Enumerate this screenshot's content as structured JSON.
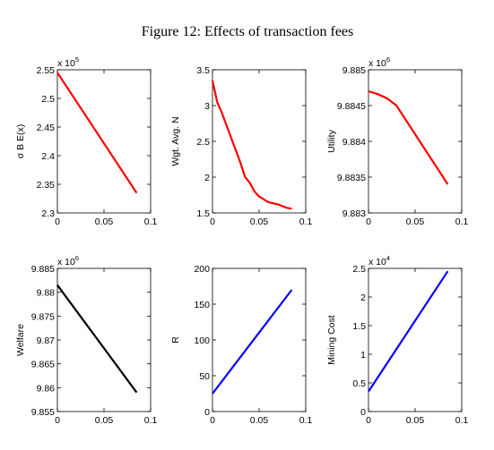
{
  "title": "Figure 12: Effects of transaction fees",
  "chart_data": [
    {
      "type": "line",
      "ylabel": "σ B E(x)",
      "xlim": [
        0,
        0.1
      ],
      "xticks": [
        0,
        0.05,
        0.1
      ],
      "ylim": [
        2.3,
        2.55
      ],
      "yticks": [
        2.3,
        2.35,
        2.4,
        2.45,
        2.5,
        2.55
      ],
      "y_multiplier": {
        "base": "x 10",
        "exponent": "5"
      },
      "series": [
        {
          "color": "#ff0000",
          "x": [
            0,
            0.085
          ],
          "values": [
            2.545,
            2.335
          ]
        }
      ]
    },
    {
      "type": "line",
      "ylabel": "Wgt. Avg. N",
      "xlim": [
        0,
        0.1
      ],
      "xticks": [
        0,
        0.05,
        0.1
      ],
      "ylim": [
        1.5,
        3.5
      ],
      "yticks": [
        1.5,
        2,
        2.5,
        3,
        3.5
      ],
      "series": [
        {
          "color": "#ff0000",
          "x": [
            0,
            0.005,
            0.01,
            0.02,
            0.03,
            0.035,
            0.04,
            0.045,
            0.05,
            0.06,
            0.07,
            0.08,
            0.085
          ],
          "values": [
            3.35,
            3.05,
            2.9,
            2.55,
            2.2,
            2.0,
            1.92,
            1.8,
            1.73,
            1.65,
            1.62,
            1.57,
            1.56
          ]
        }
      ]
    },
    {
      "type": "line",
      "ylabel": "Utility",
      "xlim": [
        0,
        0.1
      ],
      "xticks": [
        0,
        0.05,
        0.1
      ],
      "ylim": [
        9.883,
        9.885
      ],
      "yticks": [
        9.883,
        9.8835,
        9.884,
        9.8845,
        9.885
      ],
      "y_multiplier": {
        "base": "x 10",
        "exponent": "6"
      },
      "series": [
        {
          "color": "#ff0000",
          "x": [
            0,
            0.01,
            0.02,
            0.03,
            0.04,
            0.05,
            0.06,
            0.07,
            0.085
          ],
          "values": [
            9.8847,
            9.88466,
            9.8846,
            9.8845,
            9.8843,
            9.8841,
            9.8839,
            9.8837,
            9.8834
          ]
        }
      ]
    },
    {
      "type": "line",
      "ylabel": "Welfare",
      "xlim": [
        0,
        0.1
      ],
      "xticks": [
        0,
        0.05,
        0.1
      ],
      "ylim": [
        9.855,
        9.885
      ],
      "yticks": [
        9.855,
        9.86,
        9.865,
        9.87,
        9.875,
        9.88,
        9.885
      ],
      "y_multiplier": {
        "base": "x 10",
        "exponent": "6"
      },
      "series": [
        {
          "color": "#000000",
          "x": [
            0,
            0.085
          ],
          "values": [
            9.8815,
            9.859
          ]
        }
      ]
    },
    {
      "type": "line",
      "ylabel": "R",
      "xlim": [
        0,
        0.1
      ],
      "xticks": [
        0,
        0.05,
        0.1
      ],
      "ylim": [
        0,
        200
      ],
      "yticks": [
        0,
        50,
        100,
        150,
        200
      ],
      "series": [
        {
          "color": "#0000ff",
          "x": [
            0,
            0.085
          ],
          "values": [
            25,
            170
          ]
        }
      ]
    },
    {
      "type": "line",
      "ylabel": "Mining Cost",
      "xlim": [
        0,
        0.1
      ],
      "xticks": [
        0,
        0.05,
        0.1
      ],
      "ylim": [
        0,
        2.5
      ],
      "yticks": [
        0,
        0.5,
        1,
        1.5,
        2,
        2.5
      ],
      "y_multiplier": {
        "base": "x 10",
        "exponent": "4"
      },
      "series": [
        {
          "color": "#0000ff",
          "x": [
            0,
            0.085
          ],
          "values": [
            0.35,
            2.45
          ]
        }
      ]
    }
  ]
}
